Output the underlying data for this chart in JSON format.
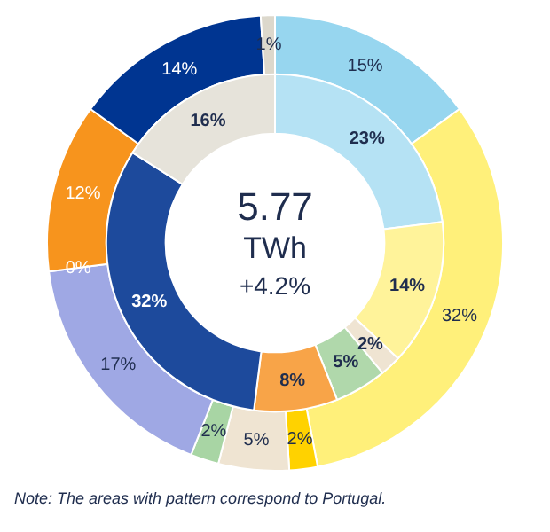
{
  "chart_data": [
    {
      "type": "donut",
      "categories": [
        null,
        null,
        null,
        null,
        null,
        null,
        null,
        null,
        null,
        null
      ],
      "data_labels": true,
      "legend": false,
      "series": [
        {
          "values": [
            15,
            32,
            2,
            5,
            2,
            17,
            0,
            12,
            14,
            1
          ],
          "value_labels": [
            "15%",
            "32%",
            "2%",
            "5%",
            "2%",
            "17%",
            "0%",
            "12%",
            "14%",
            "1%"
          ],
          "colors": [
            "#97d6ef",
            "#fff07a",
            "#ffd200",
            "#efe4d2",
            "#a8d5a4",
            "#9fa8e4",
            "#4a4a4a",
            "#f7941d",
            "#003591",
            "#dcd8cc"
          ]
        }
      ]
    },
    {
      "type": "donut",
      "categories": [
        null,
        null,
        null,
        null,
        null,
        null,
        null
      ],
      "annotations": [
        "5.77",
        "TWh",
        "+4.2%",
        "Note: The  areas with pattern correspond  to Portugal."
      ],
      "data_labels": true,
      "legend": false,
      "series": [
        {
          "values": [
            23,
            14,
            2,
            5,
            8,
            32,
            16
          ],
          "value_labels": [
            "23%",
            "14%",
            "2%",
            "5%",
            "8%",
            "32%",
            "16%"
          ],
          "colors": [
            "#b5e2f4",
            "#fff39a",
            "#efe4d2",
            "#b0d8ab",
            "#f8a448",
            "#1d4a9c",
            "#e6e3da"
          ]
        }
      ]
    }
  ]
}
